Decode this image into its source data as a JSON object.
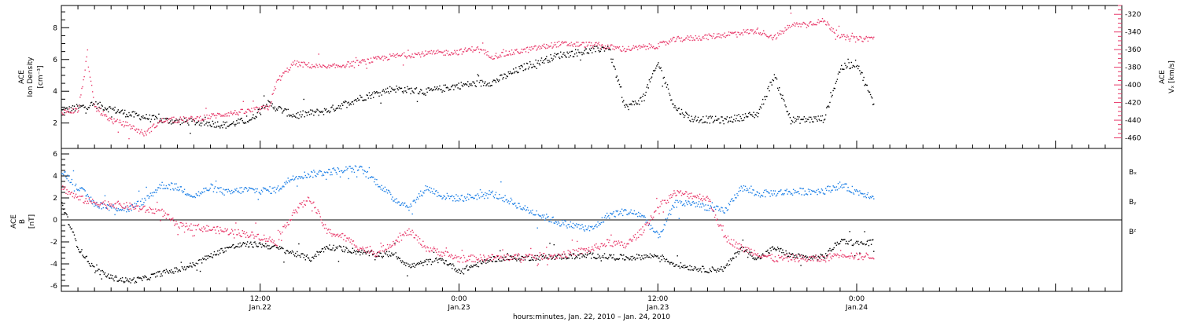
{
  "colors": {
    "black": "#000000",
    "pink": "#e8396a",
    "blue": "#1c7fe6",
    "axis": "#000000"
  },
  "chart_data": [
    {
      "type": "scatter",
      "panel": "top",
      "ylabel_line1": "ACE",
      "ylabel_line2": "Ion Density",
      "ylabel_units": "[cm⁻³]",
      "ylim": [
        0.4,
        9.4
      ],
      "yticks": [
        2,
        4,
        6,
        8
      ],
      "ylabel_right_line1": "ACE",
      "ylabel_right_line2": "Vₓ [km/s]",
      "ylim_right": [
        -472,
        -310
      ],
      "yticks_right": [
        -460,
        -440,
        -420,
        -400,
        -380,
        -360,
        -340,
        -320
      ],
      "series": [
        {
          "name": "",
          "color": "black",
          "axis": "left",
          "anchors": [
            [
              0,
              2.8
            ],
            [
              2,
              3.2
            ],
            [
              4,
              2.6
            ],
            [
              6,
              2.2
            ],
            [
              8,
              2.1
            ],
            [
              10,
              1.9
            ],
            [
              11.5,
              2.3
            ],
            [
              12.3,
              3.3
            ],
            [
              14,
              2.5
            ],
            [
              16,
              2.8
            ],
            [
              18,
              3.6
            ],
            [
              20,
              4.2
            ],
            [
              22,
              4.0
            ],
            [
              24,
              4.4
            ],
            [
              26,
              4.6
            ],
            [
              28,
              5.6
            ],
            [
              30,
              6.3
            ],
            [
              32,
              6.6
            ],
            [
              33,
              6.8
            ],
            [
              34,
              3.0
            ],
            [
              35,
              3.5
            ],
            [
              36,
              5.8
            ],
            [
              37,
              3.0
            ],
            [
              38,
              2.3
            ],
            [
              40,
              2.2
            ],
            [
              42,
              2.6
            ],
            [
              43,
              5.0
            ],
            [
              44,
              2.2
            ],
            [
              46,
              2.3
            ],
            [
              47,
              5.5
            ],
            [
              48,
              5.8
            ],
            [
              49,
              3.2
            ]
          ]
        },
        {
          "name": "",
          "color": "pink",
          "axis": "right",
          "anchors": [
            [
              0,
              -430
            ],
            [
              1,
              -428
            ],
            [
              1.5,
              -370
            ],
            [
              2,
              -425
            ],
            [
              3,
              -440
            ],
            [
              4,
              -445
            ],
            [
              5,
              -455
            ],
            [
              6,
              -440
            ],
            [
              8,
              -438
            ],
            [
              10,
              -432
            ],
            [
              11,
              -430
            ],
            [
              12.5,
              -425
            ],
            [
              13,
              -395
            ],
            [
              14,
              -375
            ],
            [
              16,
              -380
            ],
            [
              18,
              -374
            ],
            [
              20,
              -367
            ],
            [
              22,
              -364
            ],
            [
              24,
              -362
            ],
            [
              25,
              -358
            ],
            [
              26,
              -367
            ],
            [
              28,
              -360
            ],
            [
              30,
              -353
            ],
            [
              32,
              -354
            ],
            [
              34,
              -359
            ],
            [
              36,
              -355
            ],
            [
              37,
              -348
            ],
            [
              39,
              -345
            ],
            [
              41,
              -340
            ],
            [
              42,
              -338
            ],
            [
              43,
              -346
            ],
            [
              44,
              -332
            ],
            [
              45,
              -330
            ],
            [
              46,
              -327
            ],
            [
              47,
              -345
            ],
            [
              48,
              -348
            ],
            [
              49,
              -346
            ]
          ]
        }
      ],
      "xaxis": {
        "visible_in_panel": false
      }
    },
    {
      "type": "scatter",
      "panel": "bottom",
      "ylabel_line1": "ACE",
      "ylabel_line2": "B",
      "ylabel_units": "[nT]",
      "ylim": [
        -6.5,
        6.5
      ],
      "yticks": [
        -6,
        -4,
        -2,
        0,
        2,
        4,
        6
      ],
      "zero_line": true,
      "series": [
        {
          "name": "Bₓ",
          "color": "black",
          "anchors": [
            [
              0,
              1.5
            ],
            [
              1,
              -2.5
            ],
            [
              2,
              -4.5
            ],
            [
              3,
              -5.2
            ],
            [
              4,
              -5.5
            ],
            [
              5,
              -5.3
            ],
            [
              6,
              -4.8
            ],
            [
              7,
              -4.5
            ],
            [
              8,
              -4.0
            ],
            [
              9,
              -3.2
            ],
            [
              10,
              -2.5
            ],
            [
              11,
              -2.2
            ],
            [
              12,
              -2.2
            ],
            [
              13,
              -2.5
            ],
            [
              14,
              -3.0
            ],
            [
              15,
              -3.5
            ],
            [
              16,
              -2.4
            ],
            [
              17,
              -2.6
            ],
            [
              18,
              -2.9
            ],
            [
              19,
              -3.1
            ],
            [
              20,
              -3.0
            ],
            [
              21,
              -4.2
            ],
            [
              22,
              -3.8
            ],
            [
              23,
              -3.6
            ],
            [
              24,
              -4.6
            ],
            [
              26,
              -3.5
            ],
            [
              28,
              -3.4
            ],
            [
              30,
              -3.3
            ],
            [
              32,
              -3.2
            ],
            [
              34,
              -3.4
            ],
            [
              36,
              -3.2
            ],
            [
              37,
              -4.0
            ],
            [
              38,
              -4.3
            ],
            [
              39,
              -4.5
            ],
            [
              40,
              -4.4
            ],
            [
              41,
              -2.5
            ],
            [
              42,
              -3.5
            ],
            [
              43,
              -2.5
            ],
            [
              44,
              -3.2
            ],
            [
              45,
              -3.4
            ],
            [
              46,
              -3.3
            ],
            [
              47,
              -1.8
            ],
            [
              48,
              -2.1
            ],
            [
              49,
              -2.0
            ]
          ]
        },
        {
          "name": "Bᵧ",
          "color": "blue",
          "anchors": [
            [
              0,
              4.5
            ],
            [
              1,
              3.0
            ],
            [
              2,
              1.5
            ],
            [
              3,
              1.2
            ],
            [
              4,
              1.0
            ],
            [
              5,
              1.8
            ],
            [
              6,
              3.2
            ],
            [
              7,
              3.0
            ],
            [
              8,
              2.2
            ],
            [
              9,
              3.0
            ],
            [
              10,
              2.5
            ],
            [
              11,
              2.8
            ],
            [
              12,
              2.7
            ],
            [
              13,
              2.8
            ],
            [
              14,
              4.0
            ],
            [
              16,
              4.4
            ],
            [
              17,
              4.6
            ],
            [
              18,
              4.7
            ],
            [
              19,
              3.5
            ],
            [
              20,
              2.0
            ],
            [
              21,
              1.2
            ],
            [
              22,
              3.0
            ],
            [
              23,
              2.2
            ],
            [
              24,
              2.0
            ],
            [
              26,
              2.4
            ],
            [
              27,
              1.8
            ],
            [
              28,
              1.0
            ],
            [
              30,
              -0.2
            ],
            [
              32,
              -0.8
            ],
            [
              33,
              0.5
            ],
            [
              34,
              0.8
            ],
            [
              35,
              0.5
            ],
            [
              36,
              -1.5
            ],
            [
              37,
              1.5
            ],
            [
              38,
              1.6
            ],
            [
              39,
              1.2
            ],
            [
              40,
              0.8
            ],
            [
              41,
              3.0
            ],
            [
              42,
              2.4
            ],
            [
              44,
              2.6
            ],
            [
              46,
              2.7
            ],
            [
              47,
              3.2
            ],
            [
              48,
              2.6
            ],
            [
              49,
              2.2
            ]
          ]
        },
        {
          "name": "Bᶻ",
          "color": "pink",
          "anchors": [
            [
              0,
              3.0
            ],
            [
              1,
              2.0
            ],
            [
              2,
              1.6
            ],
            [
              3,
              1.5
            ],
            [
              4,
              1.3
            ],
            [
              5,
              1.0
            ],
            [
              6,
              0.8
            ],
            [
              7,
              -0.5
            ],
            [
              8,
              -0.6
            ],
            [
              9,
              -0.8
            ],
            [
              10,
              -1.0
            ],
            [
              11,
              -1.2
            ],
            [
              12,
              -1.5
            ],
            [
              13,
              -2.0
            ],
            [
              14,
              0.8
            ],
            [
              15,
              2.0
            ],
            [
              16,
              -1.0
            ],
            [
              17,
              -1.5
            ],
            [
              18,
              -2.5
            ],
            [
              19,
              -3.0
            ],
            [
              20,
              -2.0
            ],
            [
              21,
              -1.0
            ],
            [
              22,
              -2.5
            ],
            [
              23,
              -3.0
            ],
            [
              24,
              -3.5
            ],
            [
              26,
              -3.4
            ],
            [
              28,
              -3.3
            ],
            [
              30,
              -3.2
            ],
            [
              32,
              -2.6
            ],
            [
              33,
              -2.0
            ],
            [
              34,
              -2.3
            ],
            [
              35,
              -1.0
            ],
            [
              36,
              1.2
            ],
            [
              37,
              2.5
            ],
            [
              38,
              2.3
            ],
            [
              39,
              2.0
            ],
            [
              40,
              -1.5
            ],
            [
              41,
              -2.5
            ],
            [
              42,
              -3.0
            ],
            [
              43,
              -3.5
            ],
            [
              44,
              -3.4
            ],
            [
              45,
              -3.5
            ],
            [
              46,
              -3.5
            ],
            [
              47,
              -3.0
            ],
            [
              48,
              -3.3
            ],
            [
              49,
              -3.2
            ]
          ]
        }
      ],
      "xaxis": {
        "xlim_hours": [
          0,
          64
        ],
        "tick_labels_line1": [
          "12:00",
          "0:00",
          "12:00",
          "0:00"
        ],
        "tick_labels_line2": [
          "Jan.22",
          "Jan.23",
          "Jan.23",
          "Jan.24"
        ],
        "tick_hours": [
          12,
          24,
          36,
          48
        ],
        "xlabel": "hours:minutes, Jan. 22, 2010 – Jan. 24, 2010"
      }
    }
  ],
  "legend": [
    "Bₓ",
    "Bᵧ",
    "Bᶻ"
  ]
}
